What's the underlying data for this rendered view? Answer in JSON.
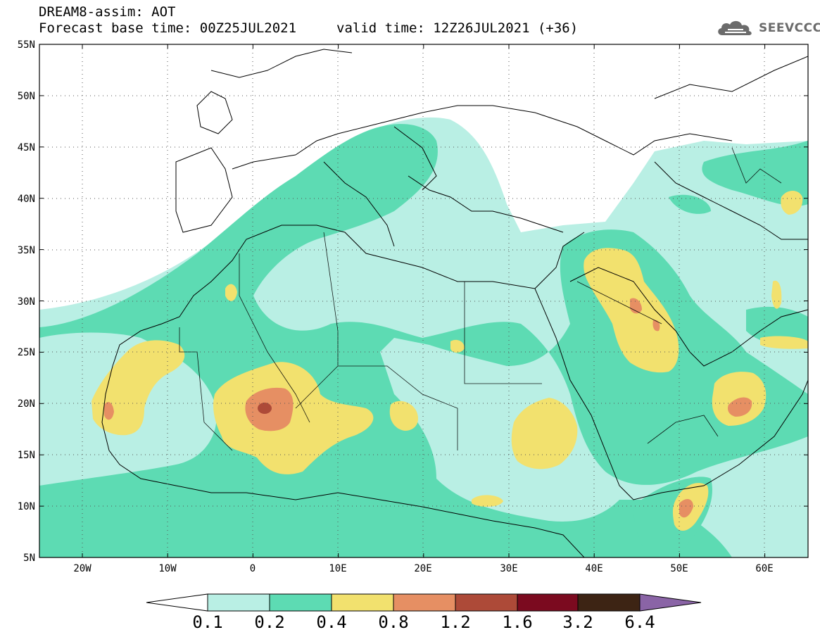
{
  "header": {
    "line1": "DREAM8-assim: AOT",
    "base_time_text": "Forecast base time: 00Z25JUL2021",
    "valid_time_text": "valid time: 12Z26JUL2021 (+36)"
  },
  "logo": {
    "text": "SEEVCCC",
    "icon": "cloud-icon"
  },
  "map": {
    "lon_range": [
      -25,
      65
    ],
    "lat_range": [
      5,
      55
    ],
    "lon_ticks": [
      "20W",
      "10W",
      "0",
      "10E",
      "20E",
      "30E",
      "40E",
      "50E",
      "60E"
    ],
    "lat_ticks": [
      "5N",
      "10N",
      "15N",
      "20N",
      "25N",
      "30N",
      "35N",
      "40N",
      "45N",
      "50N",
      "55N"
    ],
    "grid": "dotted"
  },
  "colorbar": {
    "levels": [
      "0.1",
      "0.2",
      "0.4",
      "0.8",
      "1.2",
      "1.6",
      "3.2",
      "6.4"
    ],
    "colors": [
      "#ffffff",
      "#b9efe4",
      "#5ddbb3",
      "#f2e16e",
      "#e68f63",
      "#ad4a38",
      "#7b0a1f",
      "#3d2414",
      "#8a64a6"
    ]
  }
}
